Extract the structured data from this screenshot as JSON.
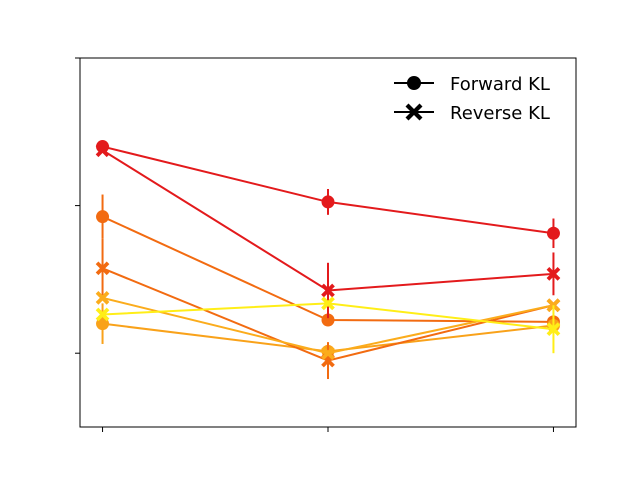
{
  "chart_data": {
    "type": "line",
    "title": "",
    "xlabel": "",
    "ylabel": "",
    "x": [
      0,
      1,
      2
    ],
    "xlim": [
      -0.1,
      2.1
    ],
    "ylim": [
      0,
      1
    ],
    "x_tick_labels": [
      "",
      "",
      ""
    ],
    "y_tick_values": [
      0.2,
      0.6,
      1.0
    ],
    "y_tick_labels": [
      "",
      "",
      ""
    ],
    "grid": false,
    "legend_position": "top-right",
    "legend": [
      {
        "label": "Forward KL",
        "marker": "circle"
      },
      {
        "label": "Reverse KL",
        "marker": "x"
      }
    ],
    "series": [
      {
        "marker": "circle",
        "color": "#e31a1c",
        "values": [
          0.76,
          0.61,
          0.525
        ],
        "errors": [
          0.0,
          0.035,
          0.04
        ]
      },
      {
        "marker": "circle",
        "color": "#f26b11",
        "values": [
          0.57,
          0.29,
          0.285
        ],
        "errors": [
          0.06,
          0.0,
          0.0
        ]
      },
      {
        "marker": "circle",
        "color": "#f9a21a",
        "values": [
          0.28,
          0.205,
          0.275
        ],
        "errors": [
          0.055,
          0.0,
          0.0
        ]
      },
      {
        "marker": "x",
        "color": "#e31a1c",
        "values": [
          0.75,
          0.37,
          0.415
        ],
        "errors": [
          0.0,
          0.075,
          0.058
        ]
      },
      {
        "marker": "x",
        "color": "#f26b11",
        "values": [
          0.43,
          0.18,
          0.33
        ],
        "errors": [
          0.08,
          0.05,
          0.0
        ]
      },
      {
        "marker": "x",
        "color": "#fbac1c",
        "values": [
          0.35,
          0.2,
          0.33
        ],
        "errors": [
          0.0,
          0.0,
          0.0
        ]
      },
      {
        "marker": "x",
        "color": "#ffee17",
        "values": [
          0.305,
          0.335,
          0.265
        ],
        "errors": [
          0.0,
          0.0,
          0.065
        ]
      }
    ]
  }
}
